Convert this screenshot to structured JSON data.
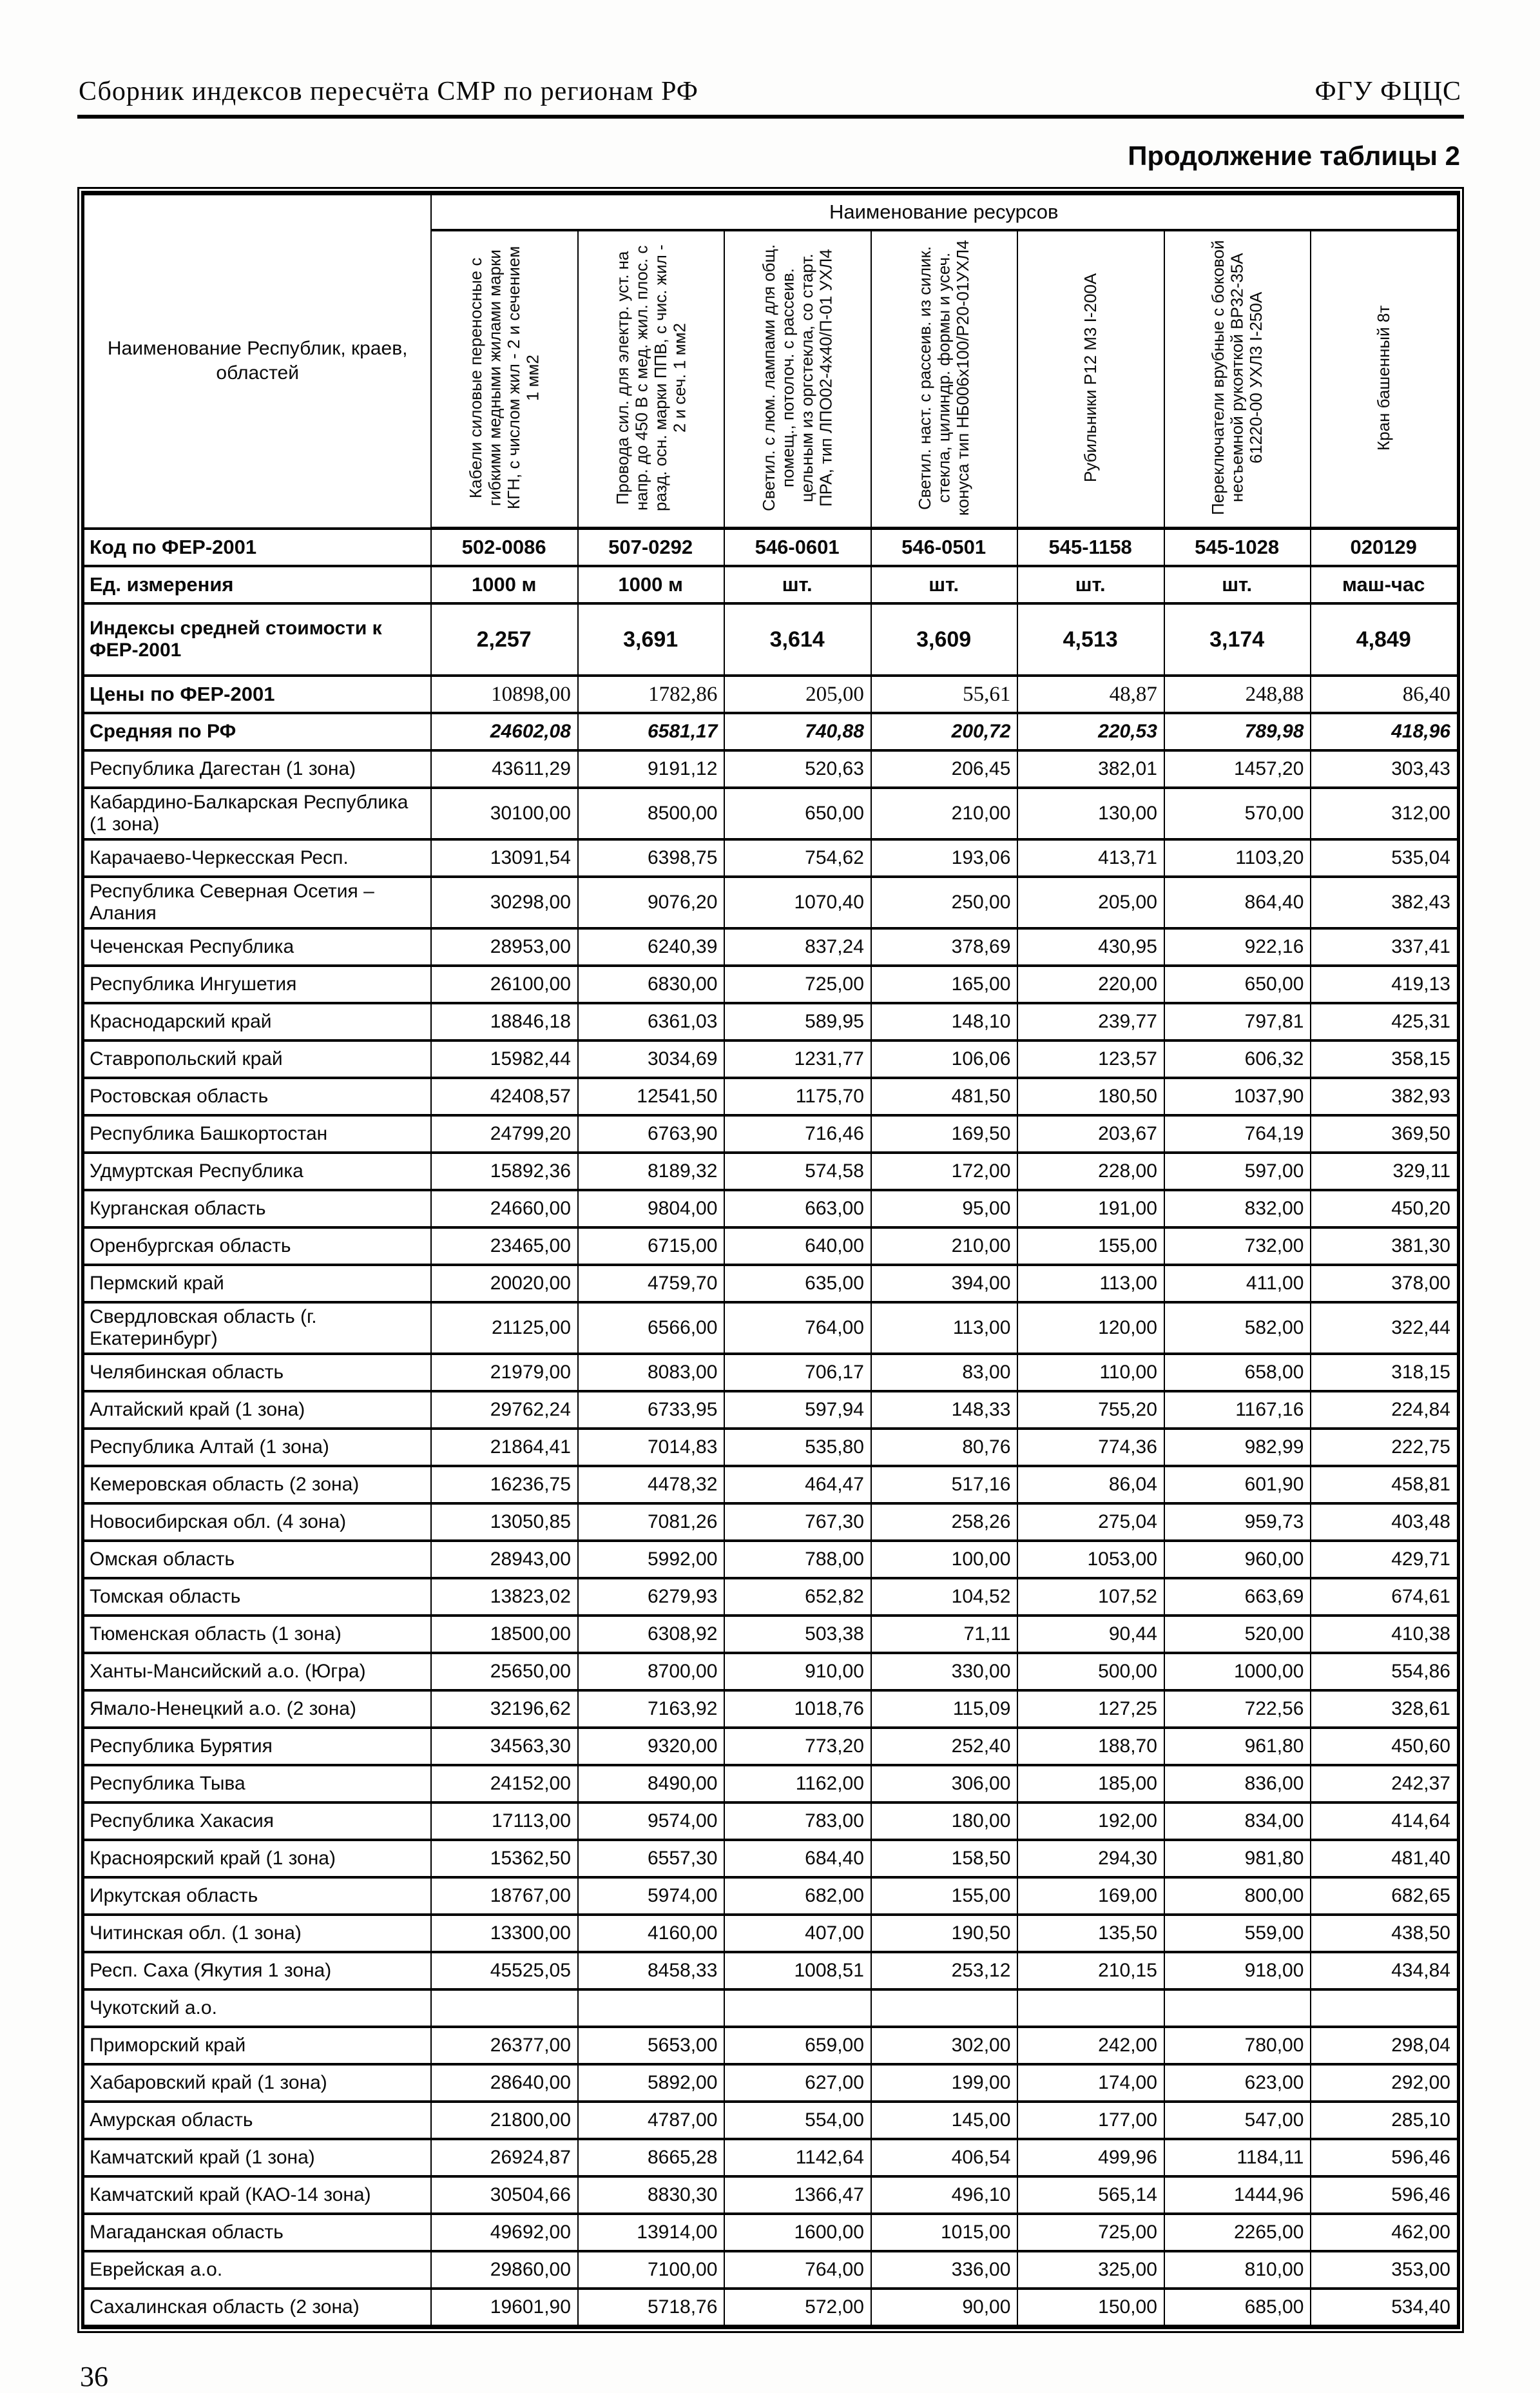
{
  "page": {
    "header_left": "Сборник индексов пересчёта СМР  по регионам РФ",
    "header_right": "ФГУ ФЦЦС",
    "table_caption": "Продолжение таблицы 2",
    "page_number": "36"
  },
  "table": {
    "corner_header": "Наименование Республик, краев, областей",
    "group_header": "Наименование ресурсов",
    "columns": [
      "Кабели силовые переносные с гибкими медными жилами марки КГН, с числом жил - 2 и сечением 1 мм2",
      "Провода сил. для электр. уст. на напр. до 450 В с мед. жил. плос. с разд. осн. марки ППВ, с чис. жил - 2 и сеч. 1 мм2",
      "Светил. с люм. лампами для общ. помещ., потолоч. с рассеив. цельным из оргстекла, со старт. ПРА, тип ЛПО02-4х40/П-01 УХЛ4",
      "Светил. наст. с рассеив. из силик. стекла, цилиндр. формы и усеч. конуса тип НБ006х100/Р20-01УХЛ4",
      "Рубильники Р12 М3 I-200А",
      "Переключатели врубные с боковой несъемной рукояткой ВР32-35А 61220-00 УХЛ3 I-250А",
      "Кран башенный 8т"
    ],
    "meta_rows": [
      {
        "label": "Код по ФЕР-2001",
        "values": [
          "502-0086",
          "507-0292",
          "546-0601",
          "546-0501",
          "545-1158",
          "545-1028",
          "020129"
        ]
      },
      {
        "label": "Ед. измерения",
        "values": [
          "1000 м",
          "1000 м",
          "шт.",
          "шт.",
          "шт.",
          "шт.",
          "маш-час"
        ]
      },
      {
        "label": "Индексы средней стоимости к ФЕР-2001",
        "values": [
          "2,257",
          "3,691",
          "3,614",
          "3,609",
          "4,513",
          "3,174",
          "4,849"
        ]
      },
      {
        "label": "Цены по ФЕР-2001",
        "values": [
          "10898,00",
          "1782,86",
          "205,00",
          "55,61",
          "48,87",
          "248,88",
          "86,40"
        ]
      },
      {
        "label": "Средняя по РФ",
        "values": [
          "24602,08",
          "6581,17",
          "740,88",
          "200,72",
          "220,53",
          "789,98",
          "418,96"
        ]
      }
    ],
    "regions": [
      {
        "label": "Республика Дагестан (1 зона)",
        "values": [
          "43611,29",
          "9191,12",
          "520,63",
          "206,45",
          "382,01",
          "1457,20",
          "303,43"
        ]
      },
      {
        "label": "Кабардино-Балкарская Республика (1 зона)",
        "values": [
          "30100,00",
          "8500,00",
          "650,00",
          "210,00",
          "130,00",
          "570,00",
          "312,00"
        ]
      },
      {
        "label": "Карачаево-Черкесская Респ.",
        "values": [
          "13091,54",
          "6398,75",
          "754,62",
          "193,06",
          "413,71",
          "1103,20",
          "535,04"
        ]
      },
      {
        "label": "Республика Северная Осетия – Алания",
        "values": [
          "30298,00",
          "9076,20",
          "1070,40",
          "250,00",
          "205,00",
          "864,40",
          "382,43"
        ]
      },
      {
        "label": "Чеченская Республика",
        "values": [
          "28953,00",
          "6240,39",
          "837,24",
          "378,69",
          "430,95",
          "922,16",
          "337,41"
        ]
      },
      {
        "label": "Республика Ингушетия",
        "values": [
          "26100,00",
          "6830,00",
          "725,00",
          "165,00",
          "220,00",
          "650,00",
          "419,13"
        ]
      },
      {
        "label": "Краснодарский край",
        "values": [
          "18846,18",
          "6361,03",
          "589,95",
          "148,10",
          "239,77",
          "797,81",
          "425,31"
        ]
      },
      {
        "label": "Ставропольский край",
        "values": [
          "15982,44",
          "3034,69",
          "1231,77",
          "106,06",
          "123,57",
          "606,32",
          "358,15"
        ]
      },
      {
        "label": "Ростовская область",
        "values": [
          "42408,57",
          "12541,50",
          "1175,70",
          "481,50",
          "180,50",
          "1037,90",
          "382,93"
        ]
      },
      {
        "label": "Республика Башкортостан",
        "values": [
          "24799,20",
          "6763,90",
          "716,46",
          "169,50",
          "203,67",
          "764,19",
          "369,50"
        ]
      },
      {
        "label": "Удмуртская Республика",
        "values": [
          "15892,36",
          "8189,32",
          "574,58",
          "172,00",
          "228,00",
          "597,00",
          "329,11"
        ]
      },
      {
        "label": "Курганская область",
        "values": [
          "24660,00",
          "9804,00",
          "663,00",
          "95,00",
          "191,00",
          "832,00",
          "450,20"
        ]
      },
      {
        "label": "Оренбургская область",
        "values": [
          "23465,00",
          "6715,00",
          "640,00",
          "210,00",
          "155,00",
          "732,00",
          "381,30"
        ]
      },
      {
        "label": "Пермский край",
        "values": [
          "20020,00",
          "4759,70",
          "635,00",
          "394,00",
          "113,00",
          "411,00",
          "378,00"
        ]
      },
      {
        "label": "Свердловская область (г. Екатеринбург)",
        "values": [
          "21125,00",
          "6566,00",
          "764,00",
          "113,00",
          "120,00",
          "582,00",
          "322,44"
        ]
      },
      {
        "label": "Челябинская область",
        "values": [
          "21979,00",
          "8083,00",
          "706,17",
          "83,00",
          "110,00",
          "658,00",
          "318,15"
        ]
      },
      {
        "label": "Алтайский край (1 зона)",
        "values": [
          "29762,24",
          "6733,95",
          "597,94",
          "148,33",
          "755,20",
          "1167,16",
          "224,84"
        ]
      },
      {
        "label": "Республика Алтай (1 зона)",
        "values": [
          "21864,41",
          "7014,83",
          "535,80",
          "80,76",
          "774,36",
          "982,99",
          "222,75"
        ]
      },
      {
        "label": "Кемеровская область (2 зона)",
        "values": [
          "16236,75",
          "4478,32",
          "464,47",
          "517,16",
          "86,04",
          "601,90",
          "458,81"
        ]
      },
      {
        "label": "Новосибирская обл. (4 зона)",
        "values": [
          "13050,85",
          "7081,26",
          "767,30",
          "258,26",
          "275,04",
          "959,73",
          "403,48"
        ]
      },
      {
        "label": "Омская область",
        "values": [
          "28943,00",
          "5992,00",
          "788,00",
          "100,00",
          "1053,00",
          "960,00",
          "429,71"
        ]
      },
      {
        "label": "Томская область",
        "values": [
          "13823,02",
          "6279,93",
          "652,82",
          "104,52",
          "107,52",
          "663,69",
          "674,61"
        ]
      },
      {
        "label": "Тюменская область (1 зона)",
        "values": [
          "18500,00",
          "6308,92",
          "503,38",
          "71,11",
          "90,44",
          "520,00",
          "410,38"
        ]
      },
      {
        "label": "Ханты-Мансийский а.о. (Югра)",
        "values": [
          "25650,00",
          "8700,00",
          "910,00",
          "330,00",
          "500,00",
          "1000,00",
          "554,86"
        ]
      },
      {
        "label": "Ямало-Ненецкий а.о. (2 зона)",
        "values": [
          "32196,62",
          "7163,92",
          "1018,76",
          "115,09",
          "127,25",
          "722,56",
          "328,61"
        ]
      },
      {
        "label": "Республика Бурятия",
        "values": [
          "34563,30",
          "9320,00",
          "773,20",
          "252,40",
          "188,70",
          "961,80",
          "450,60"
        ]
      },
      {
        "label": "Республика Тыва",
        "values": [
          "24152,00",
          "8490,00",
          "1162,00",
          "306,00",
          "185,00",
          "836,00",
          "242,37"
        ]
      },
      {
        "label": "Республика Хакасия",
        "values": [
          "17113,00",
          "9574,00",
          "783,00",
          "180,00",
          "192,00",
          "834,00",
          "414,64"
        ]
      },
      {
        "label": "Красноярский край (1 зона)",
        "values": [
          "15362,50",
          "6557,30",
          "684,40",
          "158,50",
          "294,30",
          "981,80",
          "481,40"
        ]
      },
      {
        "label": "Иркутская область",
        "values": [
          "18767,00",
          "5974,00",
          "682,00",
          "155,00",
          "169,00",
          "800,00",
          "682,65"
        ]
      },
      {
        "label": "Читинская обл. (1 зона)",
        "values": [
          "13300,00",
          "4160,00",
          "407,00",
          "190,50",
          "135,50",
          "559,00",
          "438,50"
        ]
      },
      {
        "label": "Респ. Саха (Якутия 1 зона)",
        "values": [
          "45525,05",
          "8458,33",
          "1008,51",
          "253,12",
          "210,15",
          "918,00",
          "434,84"
        ]
      },
      {
        "label": "Чукотский а.о.",
        "values": [
          "",
          "",
          "",
          "",
          "",
          "",
          ""
        ]
      },
      {
        "label": "Приморский край",
        "values": [
          "26377,00",
          "5653,00",
          "659,00",
          "302,00",
          "242,00",
          "780,00",
          "298,04"
        ]
      },
      {
        "label": "Хабаровский край (1 зона)",
        "values": [
          "28640,00",
          "5892,00",
          "627,00",
          "199,00",
          "174,00",
          "623,00",
          "292,00"
        ]
      },
      {
        "label": "Амурская область",
        "values": [
          "21800,00",
          "4787,00",
          "554,00",
          "145,00",
          "177,00",
          "547,00",
          "285,10"
        ]
      },
      {
        "label": "Камчатский край (1 зона)",
        "values": [
          "26924,87",
          "8665,28",
          "1142,64",
          "406,54",
          "499,96",
          "1184,11",
          "596,46"
        ]
      },
      {
        "label": "Камчатский край (КАО-14 зона)",
        "values": [
          "30504,66",
          "8830,30",
          "1366,47",
          "496,10",
          "565,14",
          "1444,96",
          "596,46"
        ]
      },
      {
        "label": "Магаданская область",
        "values": [
          "49692,00",
          "13914,00",
          "1600,00",
          "1015,00",
          "725,00",
          "2265,00",
          "462,00"
        ]
      },
      {
        "label": "Еврейская а.о.",
        "values": [
          "29860,00",
          "7100,00",
          "764,00",
          "336,00",
          "325,00",
          "810,00",
          "353,00"
        ]
      },
      {
        "label": "Сахалинская область (2 зона)",
        "values": [
          "19601,90",
          "5718,76",
          "572,00",
          "90,00",
          "150,00",
          "685,00",
          "534,40"
        ]
      }
    ]
  }
}
